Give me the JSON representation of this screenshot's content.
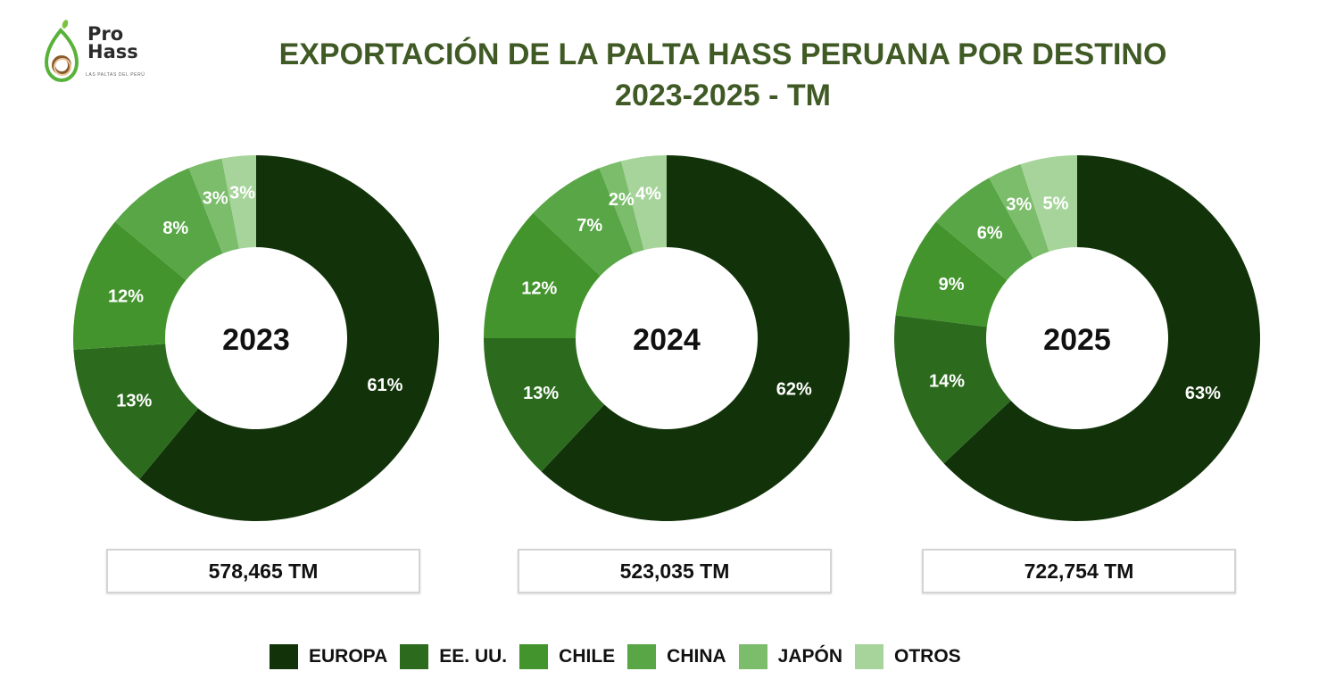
{
  "logo": {
    "line1": "Pro",
    "line2": "Hass",
    "tagline": "LAS PALTAS DEL PERÚ"
  },
  "header": {
    "title_line1": "EXPORTACIÓN DE LA PALTA HASS PERUANA POR DESTINO",
    "title_line2": "2023-2025 - TM"
  },
  "chart_data": [
    {
      "type": "pie",
      "subtype": "donut",
      "title": "EXPORTACIÓN DE LA PALTA HASS PERUANA POR DESTINO 2023-2025 - TM",
      "center_label": "2023",
      "categories": [
        "EUROPA",
        "EE. UU.",
        "CHILE",
        "CHINA",
        "JAPÓN",
        "OTROS"
      ],
      "values": [
        61,
        13,
        12,
        8,
        3,
        3
      ],
      "labels": [
        "61%",
        "13%",
        "12%",
        "8%",
        "3%",
        "3%"
      ],
      "unit": "%",
      "total": "578,465 TM"
    },
    {
      "type": "pie",
      "subtype": "donut",
      "title": "EXPORTACIÓN DE LA PALTA HASS PERUANA POR DESTINO 2023-2025 - TM",
      "center_label": "2024",
      "categories": [
        "EUROPA",
        "EE. UU.",
        "CHILE",
        "CHINA",
        "JAPÓN",
        "OTROS"
      ],
      "values": [
        62,
        13,
        12,
        7,
        2,
        4
      ],
      "labels": [
        "62%",
        "13%",
        "12%",
        "7%",
        "2%",
        "4%"
      ],
      "unit": "%",
      "total": "523,035 TM"
    },
    {
      "type": "pie",
      "subtype": "donut",
      "title": "EXPORTACIÓN DE LA PALTA HASS PERUANA POR DESTINO 2023-2025 - TM",
      "center_label": "2025",
      "categories": [
        "EUROPA",
        "EE. UU.",
        "CHILE",
        "CHINA",
        "JAPÓN",
        "OTROS"
      ],
      "values": [
        63,
        14,
        9,
        6,
        3,
        5
      ],
      "labels": [
        "63%",
        "14%",
        "9%",
        "6%",
        "3%",
        "5%"
      ],
      "unit": "%",
      "total": "722,754 TM"
    }
  ],
  "legend": {
    "placement": "bottom",
    "items": [
      {
        "label": "EUROPA",
        "color": "#12330a"
      },
      {
        "label": "EE. UU.",
        "color": "#2c6b1e"
      },
      {
        "label": "CHILE",
        "color": "#43942d"
      },
      {
        "label": "CHINA",
        "color": "#58a646"
      },
      {
        "label": "JAPÓN",
        "color": "#7bbd6b"
      },
      {
        "label": "OTROS",
        "color": "#a6d49a"
      }
    ]
  },
  "colors": {
    "title": "#3f5a24",
    "segments": [
      "#12330a",
      "#2c6b1e",
      "#43942d",
      "#58a646",
      "#7bbd6b",
      "#a6d49a"
    ]
  }
}
